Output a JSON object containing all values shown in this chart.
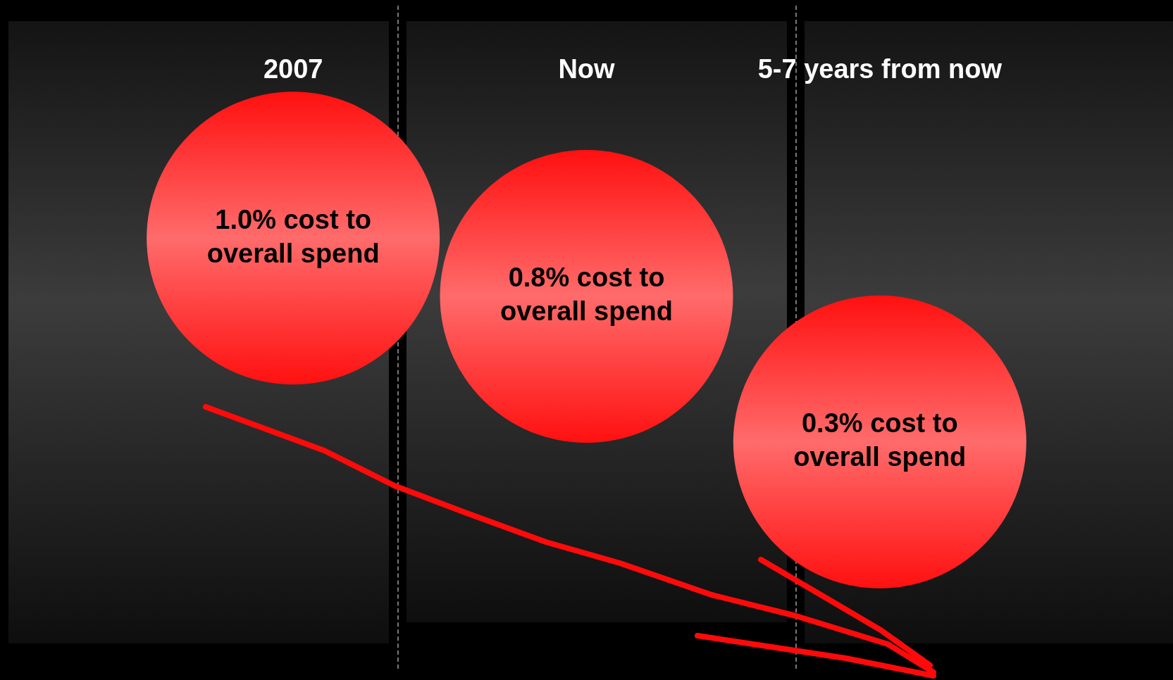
{
  "chart_data": {
    "type": "other",
    "categories": [
      "2007",
      "Now",
      "5-7 years from now"
    ],
    "values": [
      1.0,
      0.8,
      0.3
    ],
    "value_labels": [
      "1.0% cost to overall spend",
      "0.8% cost to overall spend",
      "0.3% cost to overall spend"
    ],
    "color": "#ff1010"
  }
}
